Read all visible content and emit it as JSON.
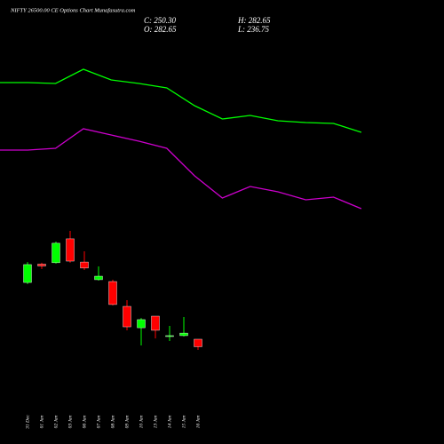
{
  "chart_data": [
    {
      "type": "candlestick",
      "title": "NIFTY 26500.00 CE Options Chart Munafasutra.com",
      "annotations": [
        "C: 250.30",
        "O: 282.65",
        "H: 282.65",
        "L: 236.75"
      ],
      "categories": [
        "31 Dec",
        "01 Jan",
        "02 Jan",
        "03 Jan",
        "06 Jan",
        "07 Jan",
        "08 Jan",
        "09 Jan",
        "10 Jan",
        "13 Jan",
        "14 Jan",
        "15 Jan",
        "16 Jan"
      ],
      "open": [
        527,
        606,
        612,
        715,
        615,
        539,
        531,
        424,
        332,
        382,
        294,
        298,
        282.65
      ],
      "high": [
        615,
        612,
        703,
        749,
        661,
        596,
        539,
        451,
        374,
        382,
        340,
        378,
        282.65
      ],
      "low": [
        520,
        585,
        608,
        612,
        581,
        535,
        428,
        321,
        256,
        286,
        275,
        294,
        236.75
      ],
      "close": [
        604,
        598,
        696,
        619,
        589,
        554,
        432,
        336,
        367,
        321,
        298,
        309,
        250.3
      ],
      "up_color": "#00ff00",
      "down_color": "#ff0000",
      "ylim": [
        200,
        800
      ]
    },
    {
      "type": "line",
      "series": [
        {
          "color": "#00ff00",
          "values": [
            83.5,
            83.5,
            83,
            91,
            85,
            83,
            80.5,
            70.5,
            63,
            65,
            62,
            61,
            60.5,
            55.5
          ]
        },
        {
          "color": "#cc00cc",
          "values": [
            45.5,
            45.5,
            46.5,
            57.5,
            54,
            50.5,
            46.5,
            31,
            18.5,
            25,
            22,
            17.5,
            19,
            12.5
          ]
        }
      ],
      "ylim": [
        0,
        100
      ]
    }
  ]
}
